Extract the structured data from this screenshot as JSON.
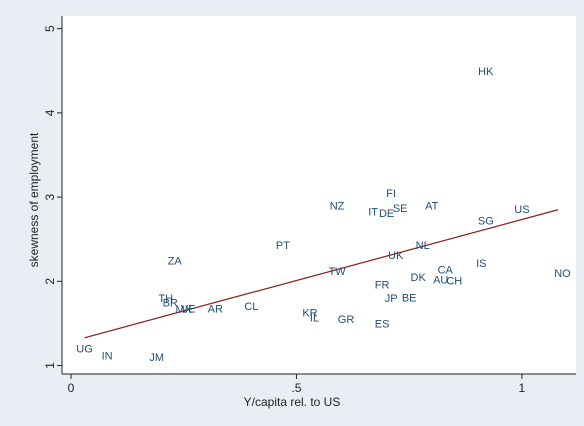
{
  "colors": {
    "background": "#e8eef3",
    "plot_background": "#ffffff",
    "axis": "#222222",
    "point_label": "#1f4e79",
    "fit_line": "#8b1a1a"
  },
  "chart_data": {
    "type": "scatter",
    "title": "",
    "xlabel": "Y/capita rel. to US",
    "ylabel": "skewness of employment",
    "xlim": [
      -0.02,
      1.12
    ],
    "ylim": [
      0.9,
      5.15
    ],
    "x_ticks": [
      {
        "value": 0,
        "label": "0"
      },
      {
        "value": 0.5,
        "label": ".5"
      },
      {
        "value": 1,
        "label": "1"
      }
    ],
    "y_ticks": [
      {
        "value": 1,
        "label": "1"
      },
      {
        "value": 2,
        "label": "2"
      },
      {
        "value": 3,
        "label": "3"
      },
      {
        "value": 4,
        "label": "4"
      },
      {
        "value": 5,
        "label": "5"
      }
    ],
    "grid": false,
    "marker": "country-code text",
    "points": [
      {
        "label": "HK",
        "x": 0.92,
        "y": 4.5
      },
      {
        "label": "FI",
        "x": 0.71,
        "y": 3.05
      },
      {
        "label": "AT",
        "x": 0.8,
        "y": 2.9
      },
      {
        "label": "NZ",
        "x": 0.59,
        "y": 2.9
      },
      {
        "label": "SE",
        "x": 0.73,
        "y": 2.87
      },
      {
        "label": "IT",
        "x": 0.67,
        "y": 2.83
      },
      {
        "label": "DE",
        "x": 0.7,
        "y": 2.81
      },
      {
        "label": "US",
        "x": 1.0,
        "y": 2.86
      },
      {
        "label": "SG",
        "x": 0.92,
        "y": 2.72
      },
      {
        "label": "PT",
        "x": 0.47,
        "y": 2.43
      },
      {
        "label": "NL",
        "x": 0.78,
        "y": 2.43
      },
      {
        "label": "UK",
        "x": 0.72,
        "y": 2.31
      },
      {
        "label": "ZA",
        "x": 0.23,
        "y": 2.25
      },
      {
        "label": "IS",
        "x": 0.91,
        "y": 2.22
      },
      {
        "label": "CA",
        "x": 0.83,
        "y": 2.14
      },
      {
        "label": "TW",
        "x": 0.59,
        "y": 2.12
      },
      {
        "label": "NO",
        "x": 1.09,
        "y": 2.1
      },
      {
        "label": "DK",
        "x": 0.77,
        "y": 2.05
      },
      {
        "label": "AU",
        "x": 0.82,
        "y": 2.02
      },
      {
        "label": "CH",
        "x": 0.85,
        "y": 2.01
      },
      {
        "label": "FR",
        "x": 0.69,
        "y": 1.96
      },
      {
        "label": "JP",
        "x": 0.71,
        "y": 1.8
      },
      {
        "label": "BE",
        "x": 0.75,
        "y": 1.81
      },
      {
        "label": "TH",
        "x": 0.21,
        "y": 1.8
      },
      {
        "label": "BR",
        "x": 0.22,
        "y": 1.75
      },
      {
        "label": "CL",
        "x": 0.4,
        "y": 1.71
      },
      {
        "label": "MX",
        "x": 0.25,
        "y": 1.67
      },
      {
        "label": "VE",
        "x": 0.26,
        "y": 1.68
      },
      {
        "label": "AR",
        "x": 0.32,
        "y": 1.68
      },
      {
        "label": "KR",
        "x": 0.53,
        "y": 1.63
      },
      {
        "label": "IL",
        "x": 0.54,
        "y": 1.57
      },
      {
        "label": "GR",
        "x": 0.61,
        "y": 1.55
      },
      {
        "label": "ES",
        "x": 0.69,
        "y": 1.5
      },
      {
        "label": "UG",
        "x": 0.03,
        "y": 1.2
      },
      {
        "label": "IN",
        "x": 0.08,
        "y": 1.12
      },
      {
        "label": "JM",
        "x": 0.19,
        "y": 1.1
      }
    ],
    "fit_line": {
      "x": [
        0.03,
        1.08
      ],
      "y": [
        1.33,
        2.85
      ]
    }
  }
}
